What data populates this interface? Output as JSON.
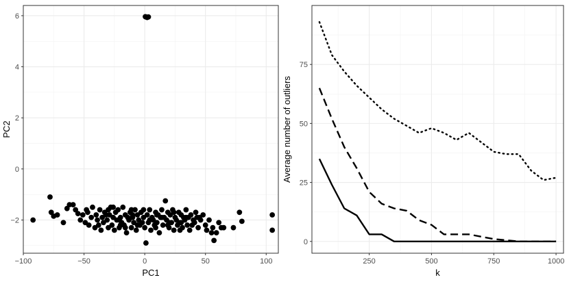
{
  "chart_data": [
    {
      "type": "scatter",
      "xlabel": "PC1",
      "ylabel": "PC2",
      "xlim": [
        -100,
        110
      ],
      "ylim": [
        -3.3,
        6.4
      ],
      "xticks": [
        -100,
        -50,
        0,
        50,
        100
      ],
      "xtick_labels": [
        "−100",
        "−50",
        "0",
        "50",
        "100"
      ],
      "yticks": [
        -2,
        0,
        2,
        4,
        6
      ],
      "ytick_labels": [
        "−2",
        "0",
        "2",
        "4",
        "6"
      ],
      "grid": true,
      "point_color": "#000000",
      "points": [
        [
          1,
          5.95
        ],
        [
          2,
          5.93
        ],
        [
          0.5,
          5.96
        ],
        [
          3,
          5.95
        ],
        [
          -92,
          -2.0
        ],
        [
          -78,
          -1.1
        ],
        [
          -77,
          -1.7
        ],
        [
          -75,
          -1.85
        ],
        [
          -72,
          -1.8
        ],
        [
          -67,
          -2.1
        ],
        [
          -64,
          -1.55
        ],
        [
          -62,
          -1.4
        ],
        [
          -59,
          -1.4
        ],
        [
          -57,
          -1.6
        ],
        [
          -55,
          -1.75
        ],
        [
          -53,
          -2.0
        ],
        [
          -51,
          -1.8
        ],
        [
          -49,
          -2.1
        ],
        [
          -47,
          -1.7
        ],
        [
          -46,
          -2.2
        ],
        [
          -44,
          -1.9
        ],
        [
          -43,
          -1.5
        ],
        [
          -41,
          -2.3
        ],
        [
          -40,
          -1.8
        ],
        [
          -39,
          -2.0
        ],
        [
          -37,
          -1.6
        ],
        [
          -36,
          -2.4
        ],
        [
          -35,
          -1.9
        ],
        [
          -34,
          -2.1
        ],
        [
          -33,
          -1.7
        ],
        [
          -31,
          -2.0
        ],
        [
          -30,
          -2.3
        ],
        [
          -29,
          -1.8
        ],
        [
          -28,
          -1.5
        ],
        [
          -27,
          -2.2
        ],
        [
          -26,
          -1.9
        ],
        [
          -25,
          -2.4
        ],
        [
          -24,
          -1.7
        ],
        [
          -23,
          -2.0
        ],
        [
          -22,
          -1.6
        ],
        [
          -21,
          -2.3
        ],
        [
          -20,
          -1.9
        ],
        [
          -19,
          -2.1
        ],
        [
          -18,
          -1.5
        ],
        [
          -17,
          -2.2
        ],
        [
          -16,
          -1.8
        ],
        [
          -15,
          -2.5
        ],
        [
          -14,
          -1.9
        ],
        [
          -13,
          -2.0
        ],
        [
          -12,
          -1.7
        ],
        [
          -11,
          -2.3
        ],
        [
          -10,
          -1.9
        ],
        [
          -9,
          -2.1
        ],
        [
          -8,
          -1.6
        ],
        [
          -7,
          -2.4
        ],
        [
          -6,
          -1.8
        ],
        [
          -5,
          -2.0
        ],
        [
          -4,
          -2.2
        ],
        [
          -3,
          -1.7
        ],
        [
          -2,
          -2.1
        ],
        [
          -1,
          -1.9
        ],
        [
          0,
          -2.3
        ],
        [
          1,
          -2.9
        ],
        [
          2,
          -1.8
        ],
        [
          3,
          -2.1
        ],
        [
          4,
          -1.6
        ],
        [
          5,
          -2.4
        ],
        [
          6,
          -1.9
        ],
        [
          7,
          -2.0
        ],
        [
          8,
          -2.2
        ],
        [
          9,
          -1.7
        ],
        [
          10,
          -2.1
        ],
        [
          11,
          -1.8
        ],
        [
          12,
          -2.5
        ],
        [
          13,
          -1.9
        ],
        [
          14,
          -1.6
        ],
        [
          15,
          -2.2
        ],
        [
          16,
          -1.9
        ],
        [
          17,
          -1.25
        ],
        [
          18,
          -2.0
        ],
        [
          19,
          -1.7
        ],
        [
          20,
          -2.3
        ],
        [
          21,
          -1.8
        ],
        [
          22,
          -2.1
        ],
        [
          23,
          -1.6
        ],
        [
          24,
          -2.4
        ],
        [
          25,
          -1.9
        ],
        [
          26,
          -2.0
        ],
        [
          27,
          -2.2
        ],
        [
          28,
          -1.7
        ],
        [
          29,
          -2.1
        ],
        [
          30,
          -1.8
        ],
        [
          31,
          -2.3
        ],
        [
          32,
          -1.9
        ],
        [
          33,
          -2.0
        ],
        [
          34,
          -1.6
        ],
        [
          35,
          -2.2
        ],
        [
          36,
          -1.9
        ],
        [
          37,
          -2.4
        ],
        [
          38,
          -1.8
        ],
        [
          40,
          -2.0
        ],
        [
          41,
          -2.1
        ],
        [
          42,
          -1.7
        ],
        [
          44,
          -2.3
        ],
        [
          45,
          -1.9
        ],
        [
          46,
          -2.0
        ],
        [
          48,
          -1.8
        ],
        [
          50,
          -2.2
        ],
        [
          51,
          -2.4
        ],
        [
          53,
          -2.0
        ],
        [
          55,
          -2.5
        ],
        [
          56,
          -2.3
        ],
        [
          57,
          -2.8
        ],
        [
          59,
          -2.5
        ],
        [
          61,
          -2.1
        ],
        [
          63,
          -2.3
        ],
        [
          65,
          -2.3
        ],
        [
          73,
          -2.3
        ],
        [
          78,
          -1.7
        ],
        [
          80,
          -2.05
        ],
        [
          105,
          -1.8
        ],
        [
          105,
          -2.4
        ],
        [
          -48,
          -1.6
        ],
        [
          -38,
          -2.2
        ],
        [
          -32,
          -1.8
        ],
        [
          -26,
          -1.5
        ],
        [
          -21,
          -2.0
        ],
        [
          -16,
          -2.3
        ],
        [
          -11,
          -1.6
        ],
        [
          -6,
          -2.2
        ],
        [
          -1,
          -1.6
        ],
        [
          4,
          -2.0
        ],
        [
          9,
          -2.3
        ],
        [
          14,
          -1.9
        ],
        [
          19,
          -2.2
        ],
        [
          24,
          -1.7
        ],
        [
          29,
          -2.4
        ],
        [
          34,
          -1.9
        ],
        [
          39,
          -2.2
        ],
        [
          43,
          -1.9
        ],
        [
          -30,
          -1.6
        ],
        [
          -20,
          -2.2
        ],
        [
          -10,
          -1.8
        ],
        [
          10,
          -1.8
        ],
        [
          20,
          -2.1
        ],
        [
          30,
          -2.1
        ]
      ]
    },
    {
      "type": "line",
      "xlabel": "k",
      "ylabel": "Average number of outliers",
      "xlim": [
        20,
        1030
      ],
      "ylim": [
        -5,
        100
      ],
      "xticks": [
        250,
        500,
        750,
        1000
      ],
      "yticks": [
        0,
        25,
        50,
        75
      ],
      "grid": true,
      "series": [
        {
          "dash": "solid",
          "x": [
            50,
            100,
            150,
            200,
            250,
            300,
            350,
            400,
            450,
            500,
            550,
            600,
            650,
            700,
            750,
            800,
            850,
            900,
            950,
            1000
          ],
          "y": [
            35,
            24,
            14,
            11,
            3,
            3,
            0,
            0,
            0,
            0,
            0,
            0,
            0,
            0,
            0,
            0,
            0,
            0,
            0,
            0
          ]
        },
        {
          "dash": "dashed",
          "x": [
            50,
            100,
            150,
            200,
            250,
            300,
            350,
            400,
            450,
            500,
            550,
            600,
            650,
            700,
            750,
            800,
            850,
            900,
            950,
            1000
          ],
          "y": [
            65,
            52,
            40,
            31,
            21,
            16,
            14,
            13,
            9,
            7,
            3,
            3,
            3,
            2,
            1,
            0.5,
            0,
            0,
            0,
            0
          ]
        },
        {
          "dash": "dotted",
          "x": [
            50,
            100,
            150,
            200,
            250,
            300,
            350,
            400,
            450,
            500,
            550,
            600,
            650,
            700,
            750,
            800,
            850,
            900,
            950,
            1000
          ],
          "y": [
            93,
            79,
            72,
            66,
            61,
            56,
            52,
            49,
            46,
            48,
            46,
            43,
            46,
            42,
            38,
            37,
            37,
            30,
            26,
            27
          ]
        }
      ]
    }
  ]
}
